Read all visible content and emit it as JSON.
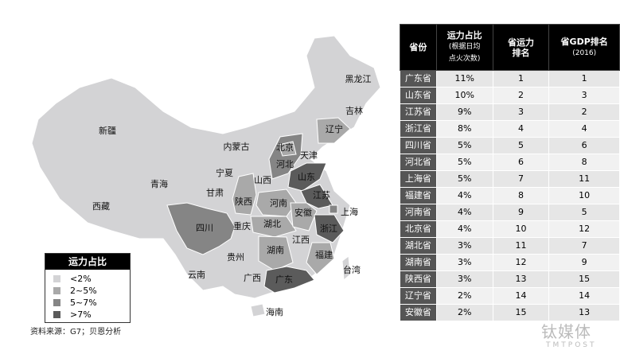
{
  "colors": {
    "lt2": "#d3d3d5",
    "2to5": "#a9a9a9",
    "5to7": "#858585",
    "gt7": "#5b5b5b"
  },
  "map": {
    "provinces": [
      {
        "name": "黑龙江",
        "level": "lt2"
      },
      {
        "name": "吉林",
        "level": "lt2"
      },
      {
        "name": "辽宁",
        "level": "2to5"
      },
      {
        "name": "新疆",
        "level": "lt2"
      },
      {
        "name": "内蒙古",
        "level": "lt2"
      },
      {
        "name": "北京",
        "level": "2to5"
      },
      {
        "name": "天津",
        "level": "2to5"
      },
      {
        "name": "河北",
        "level": "5to7"
      },
      {
        "name": "宁夏",
        "level": "lt2"
      },
      {
        "name": "山西",
        "level": "lt2"
      },
      {
        "name": "山东",
        "level": "gt7"
      },
      {
        "name": "青海",
        "level": "lt2"
      },
      {
        "name": "甘肃",
        "level": "lt2"
      },
      {
        "name": "陕西",
        "level": "2to5"
      },
      {
        "name": "河南",
        "level": "2to5"
      },
      {
        "name": "江苏",
        "level": "gt7"
      },
      {
        "name": "安徽",
        "level": "2to5"
      },
      {
        "name": "上海",
        "level": "5to7"
      },
      {
        "name": "西藏",
        "level": "lt2"
      },
      {
        "name": "四川",
        "level": "5to7"
      },
      {
        "name": "重庆",
        "level": "lt2"
      },
      {
        "name": "湖北",
        "level": "2to5"
      },
      {
        "name": "浙江",
        "level": "gt7"
      },
      {
        "name": "江西",
        "level": "lt2"
      },
      {
        "name": "贵州",
        "level": "lt2"
      },
      {
        "name": "湖南",
        "level": "2to5"
      },
      {
        "name": "福建",
        "level": "2to5"
      },
      {
        "name": "云南",
        "level": "lt2"
      },
      {
        "name": "广西",
        "level": "lt2"
      },
      {
        "name": "广东",
        "level": "gt7"
      },
      {
        "name": "台湾",
        "level": "lt2"
      },
      {
        "name": "海南",
        "level": "lt2"
      }
    ]
  },
  "legend": {
    "title": "运力占比",
    "items": [
      "<2%",
      "2~5%",
      "5~7%",
      ">7%"
    ]
  },
  "source": "资料来源：G7；贝恩分析",
  "table": {
    "headers": {
      "province": "省份",
      "share": "运力占比",
      "share_note1": "(根据日均",
      "share_note2": "点火次数)",
      "rank1": "省运力",
      "rank2": "排名",
      "gdp1": "省GDP排名",
      "gdp2": "(2016)"
    },
    "rows": [
      [
        "广东省",
        "11%",
        "1",
        "1"
      ],
      [
        "山东省",
        "10%",
        "2",
        "3"
      ],
      [
        "江苏省",
        "9%",
        "3",
        "2"
      ],
      [
        "浙江省",
        "8%",
        "4",
        "4"
      ],
      [
        "四川省",
        "5%",
        "5",
        "6"
      ],
      [
        "河北省",
        "5%",
        "6",
        "8"
      ],
      [
        "上海省",
        "5%",
        "7",
        "11"
      ],
      [
        "福建省",
        "4%",
        "8",
        "10"
      ],
      [
        "河南省",
        "4%",
        "9",
        "5"
      ],
      [
        "北京省",
        "4%",
        "10",
        "12"
      ],
      [
        "湖北省",
        "3%",
        "11",
        "7"
      ],
      [
        "湖南省",
        "3%",
        "12",
        "9"
      ],
      [
        "陕西省",
        "3%",
        "13",
        "15"
      ],
      [
        "辽宁省",
        "2%",
        "14",
        "14"
      ],
      [
        "安徽省",
        "2%",
        "15",
        "13"
      ]
    ]
  },
  "watermark": {
    "cn": "钛媒体",
    "en": "TMTPOST"
  }
}
